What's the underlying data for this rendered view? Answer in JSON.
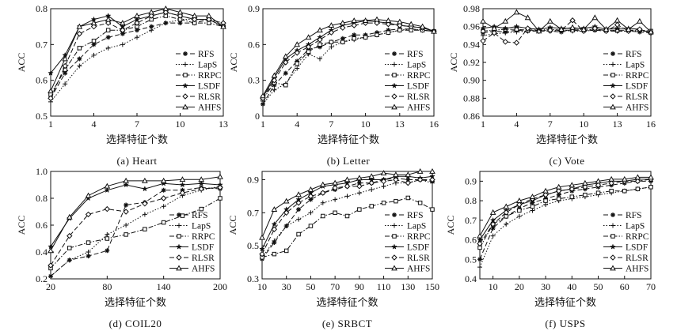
{
  "chart_data": [
    {
      "type": "line",
      "caption": "(a)   Heart",
      "xlabel": "选择特征个数",
      "ylabel": "ACC",
      "xlim": [
        1,
        13
      ],
      "ylim": [
        0.5,
        0.8
      ],
      "xticks": [
        "1",
        "4",
        "7",
        "10",
        "13"
      ],
      "yticks": [
        "0.5",
        "0.6",
        "0.7",
        "0.8"
      ],
      "legend_position": "right",
      "x": [
        1,
        2,
        3,
        4,
        5,
        6,
        7,
        8,
        9,
        10,
        11,
        12,
        13
      ],
      "series": [
        {
          "name": "RFS",
          "marker": "asterisk",
          "dash": "6,3",
          "values": [
            0.55,
            0.62,
            0.66,
            0.7,
            0.72,
            0.73,
            0.74,
            0.75,
            0.76,
            0.76,
            0.76,
            0.77,
            0.75
          ]
        },
        {
          "name": "LapS",
          "marker": "plus",
          "dash": "1.5,2",
          "values": [
            0.54,
            0.59,
            0.64,
            0.67,
            0.69,
            0.7,
            0.72,
            0.74,
            0.76,
            0.77,
            0.77,
            0.77,
            0.76
          ]
        },
        {
          "name": "RRPC",
          "marker": "square",
          "dash": "6,2,1.5,2",
          "values": [
            0.56,
            0.63,
            0.69,
            0.71,
            0.74,
            0.74,
            0.75,
            0.77,
            0.78,
            0.77,
            0.76,
            0.76,
            0.75
          ]
        },
        {
          "name": "LSDF",
          "marker": "star",
          "dash": "",
          "values": [
            0.62,
            0.67,
            0.75,
            0.77,
            0.78,
            0.75,
            0.77,
            0.78,
            0.79,
            0.78,
            0.77,
            0.77,
            0.75
          ]
        },
        {
          "name": "RLSR",
          "marker": "diamond",
          "dash": "6,3",
          "values": [
            0.55,
            0.64,
            0.73,
            0.75,
            0.76,
            0.74,
            0.76,
            0.78,
            0.79,
            0.78,
            0.77,
            0.77,
            0.76
          ]
        },
        {
          "name": "AHFS",
          "marker": "triangle",
          "dash": "",
          "values": [
            0.57,
            0.66,
            0.75,
            0.76,
            0.77,
            0.76,
            0.78,
            0.79,
            0.8,
            0.79,
            0.78,
            0.78,
            0.75
          ]
        }
      ]
    },
    {
      "type": "line",
      "caption": "(b)   Letter",
      "xlabel": "选择特征个数",
      "ylabel": "ACC",
      "xlim": [
        1,
        16
      ],
      "ylim": [
        0,
        0.9
      ],
      "xticks": [
        "1",
        "4",
        "7",
        "10",
        "13",
        "16"
      ],
      "xtick_values": [
        1,
        4,
        7,
        10,
        13,
        16
      ],
      "yticks": [
        "0",
        "0.3",
        "0.6",
        "0.9"
      ],
      "legend_position": "right",
      "x": [
        1,
        2,
        3,
        4,
        5,
        6,
        7,
        8,
        9,
        10,
        11,
        12,
        13,
        14,
        15,
        16
      ],
      "series": [
        {
          "name": "RFS",
          "marker": "asterisk",
          "dash": "6,3",
          "values": [
            0.1,
            0.26,
            0.36,
            0.46,
            0.56,
            0.58,
            0.62,
            0.65,
            0.68,
            0.68,
            0.7,
            0.72,
            0.73,
            0.73,
            0.72,
            0.71
          ]
        },
        {
          "name": "LapS",
          "marker": "plus",
          "dash": "1.5,2",
          "values": [
            0.1,
            0.22,
            0.27,
            0.4,
            0.52,
            0.48,
            0.58,
            0.62,
            0.64,
            0.66,
            0.68,
            0.7,
            0.72,
            0.73,
            0.72,
            0.71
          ]
        },
        {
          "name": "RRPC",
          "marker": "square",
          "dash": "6,2,1.5,2",
          "values": [
            0.14,
            0.28,
            0.26,
            0.44,
            0.54,
            0.6,
            0.62,
            0.62,
            0.65,
            0.66,
            0.68,
            0.7,
            0.72,
            0.72,
            0.72,
            0.71
          ]
        },
        {
          "name": "LSDF",
          "marker": "star",
          "dash": "",
          "values": [
            0.16,
            0.32,
            0.48,
            0.55,
            0.6,
            0.66,
            0.72,
            0.76,
            0.78,
            0.8,
            0.79,
            0.78,
            0.76,
            0.75,
            0.74,
            0.71
          ]
        },
        {
          "name": "RLSR",
          "marker": "diamond",
          "dash": "6,3",
          "values": [
            0.15,
            0.3,
            0.45,
            0.53,
            0.58,
            0.64,
            0.7,
            0.74,
            0.76,
            0.78,
            0.78,
            0.77,
            0.76,
            0.75,
            0.74,
            0.71
          ]
        },
        {
          "name": "AHFS",
          "marker": "triangle",
          "dash": "",
          "values": [
            0.17,
            0.34,
            0.5,
            0.6,
            0.66,
            0.72,
            0.76,
            0.78,
            0.8,
            0.8,
            0.81,
            0.8,
            0.79,
            0.77,
            0.75,
            0.71
          ]
        }
      ]
    },
    {
      "type": "line",
      "caption": "(c)   Vote",
      "xlabel": "选择特征个数",
      "ylabel": "ACC",
      "xlim": [
        1,
        16
      ],
      "ylim": [
        0.86,
        0.98
      ],
      "xticks": [
        "1",
        "4",
        "7",
        "10",
        "13",
        "16"
      ],
      "xtick_values": [
        1,
        4,
        7,
        10,
        13,
        16
      ],
      "yticks": [
        "0.86",
        "0.88",
        "0.90",
        "0.92",
        "0.94",
        "0.96",
        "0.98"
      ],
      "legend_position": "right",
      "x": [
        1,
        2,
        3,
        4,
        5,
        6,
        7,
        8,
        9,
        10,
        11,
        12,
        13,
        14,
        15,
        16
      ],
      "series": [
        {
          "name": "RFS",
          "marker": "asterisk",
          "dash": "6,3",
          "values": [
            0.953,
            0.955,
            0.954,
            0.956,
            0.955,
            0.955,
            0.955,
            0.954,
            0.956,
            0.955,
            0.956,
            0.955,
            0.955,
            0.955,
            0.954,
            0.953
          ]
        },
        {
          "name": "LapS",
          "marker": "plus",
          "dash": "1.5,2",
          "values": [
            0.95,
            0.952,
            0.953,
            0.954,
            0.955,
            0.956,
            0.955,
            0.956,
            0.955,
            0.955,
            0.956,
            0.956,
            0.955,
            0.955,
            0.955,
            0.954
          ]
        },
        {
          "name": "RRPC",
          "marker": "square",
          "dash": "6,2,1.5,2",
          "values": [
            0.955,
            0.956,
            0.957,
            0.957,
            0.956,
            0.956,
            0.957,
            0.956,
            0.956,
            0.957,
            0.957,
            0.956,
            0.956,
            0.956,
            0.956,
            0.955
          ]
        },
        {
          "name": "LSDF",
          "marker": "star",
          "dash": "",
          "values": [
            0.958,
            0.96,
            0.958,
            0.96,
            0.958,
            0.957,
            0.959,
            0.958,
            0.958,
            0.958,
            0.96,
            0.957,
            0.958,
            0.958,
            0.957,
            0.953
          ]
        },
        {
          "name": "RLSR",
          "marker": "diamond",
          "dash": "6,3",
          "values": [
            0.944,
            0.953,
            0.943,
            0.942,
            0.958,
            0.955,
            0.956,
            0.956,
            0.967,
            0.955,
            0.958,
            0.955,
            0.962,
            0.955,
            0.957,
            0.953
          ]
        },
        {
          "name": "AHFS",
          "marker": "triangle",
          "dash": "",
          "values": [
            0.966,
            0.958,
            0.966,
            0.976,
            0.97,
            0.955,
            0.966,
            0.957,
            0.959,
            0.957,
            0.97,
            0.957,
            0.967,
            0.957,
            0.966,
            0.954
          ]
        }
      ]
    },
    {
      "type": "line",
      "caption": "(d)   COIL20",
      "xlabel": "选择特征个数",
      "ylabel": "ACC",
      "xlim": [
        20,
        200
      ],
      "ylim": [
        0.2,
        1.0
      ],
      "xticks": [
        "20",
        "80",
        "140",
        "200"
      ],
      "xtick_values": [
        20,
        80,
        140,
        200
      ],
      "yticks": [
        "0.2",
        "0.4",
        "0.6",
        "0.8",
        "1.0"
      ],
      "legend_position": "right",
      "x": [
        20,
        40,
        60,
        80,
        100,
        120,
        140,
        160,
        180,
        200
      ],
      "series": [
        {
          "name": "RFS",
          "marker": "asterisk",
          "dash": "6,3",
          "values": [
            0.22,
            0.34,
            0.37,
            0.41,
            0.75,
            0.77,
            0.86,
            0.86,
            0.88,
            0.87
          ]
        },
        {
          "name": "LapS",
          "marker": "plus",
          "dash": "1.5,2",
          "values": [
            0.22,
            0.34,
            0.4,
            0.53,
            0.6,
            0.68,
            0.74,
            0.82,
            0.86,
            0.89
          ]
        },
        {
          "name": "RRPC",
          "marker": "square",
          "dash": "6,2,1.5,2",
          "values": [
            0.28,
            0.43,
            0.47,
            0.5,
            0.53,
            0.57,
            0.62,
            0.67,
            0.72,
            0.8
          ]
        },
        {
          "name": "LSDF",
          "marker": "star",
          "dash": "",
          "values": [
            0.44,
            0.65,
            0.8,
            0.86,
            0.9,
            0.87,
            0.91,
            0.9,
            0.91,
            0.9
          ]
        },
        {
          "name": "RLSR",
          "marker": "diamond",
          "dash": "6,3",
          "values": [
            0.3,
            0.52,
            0.68,
            0.72,
            0.7,
            0.76,
            0.8,
            0.84,
            0.87,
            0.88
          ]
        },
        {
          "name": "AHFS",
          "marker": "triangle",
          "dash": "",
          "values": [
            0.41,
            0.66,
            0.82,
            0.89,
            0.93,
            0.93,
            0.93,
            0.94,
            0.94,
            0.96
          ]
        }
      ]
    },
    {
      "type": "line",
      "caption": "(e)   SRBCT",
      "xlabel": "选择特征个数",
      "ylabel": "ACC",
      "xlim": [
        10,
        150
      ],
      "ylim": [
        0.3,
        0.95
      ],
      "xticks": [
        "10",
        "30",
        "50",
        "70",
        "90",
        "110",
        "130",
        "150"
      ],
      "xtick_values": [
        10,
        30,
        50,
        70,
        90,
        110,
        130,
        150
      ],
      "yticks": [
        "0.3",
        "0.5",
        "0.7",
        "0.9"
      ],
      "legend_position": "bottom-right",
      "x": [
        10,
        20,
        30,
        40,
        50,
        60,
        70,
        80,
        90,
        100,
        110,
        120,
        130,
        140,
        150
      ],
      "series": [
        {
          "name": "RFS",
          "marker": "asterisk",
          "dash": "6,3",
          "values": [
            0.42,
            0.52,
            0.62,
            0.72,
            0.78,
            0.82,
            0.84,
            0.86,
            0.88,
            0.88,
            0.9,
            0.91,
            0.9,
            0.9,
            0.89
          ]
        },
        {
          "name": "LapS",
          "marker": "plus",
          "dash": "1.5,2",
          "values": [
            0.43,
            0.53,
            0.62,
            0.66,
            0.7,
            0.76,
            0.78,
            0.8,
            0.82,
            0.84,
            0.86,
            0.88,
            0.88,
            0.9,
            0.88
          ]
        },
        {
          "name": "RRPC",
          "marker": "square",
          "dash": "6,2,1.5,2",
          "values": [
            0.43,
            0.45,
            0.47,
            0.57,
            0.62,
            0.68,
            0.7,
            0.68,
            0.72,
            0.74,
            0.76,
            0.77,
            0.79,
            0.76,
            0.72
          ]
        },
        {
          "name": "LSDF",
          "marker": "star",
          "dash": "",
          "values": [
            0.48,
            0.63,
            0.72,
            0.78,
            0.82,
            0.86,
            0.87,
            0.88,
            0.9,
            0.9,
            0.9,
            0.92,
            0.92,
            0.91,
            0.92
          ]
        },
        {
          "name": "RLSR",
          "marker": "diamond",
          "dash": "6,3",
          "values": [
            0.45,
            0.6,
            0.7,
            0.76,
            0.8,
            0.82,
            0.85,
            0.86,
            0.86,
            0.88,
            0.89,
            0.9,
            0.88,
            0.9,
            0.9
          ]
        },
        {
          "name": "AHFS",
          "marker": "triangle",
          "dash": "",
          "values": [
            0.55,
            0.72,
            0.77,
            0.81,
            0.84,
            0.87,
            0.88,
            0.9,
            0.91,
            0.92,
            0.94,
            0.93,
            0.93,
            0.95,
            0.95
          ]
        }
      ]
    },
    {
      "type": "line",
      "caption": "(f)   USPS",
      "xlabel": "选择特征个数",
      "ylabel": "ACC",
      "xlim": [
        5,
        70
      ],
      "ylim": [
        0.4,
        0.95
      ],
      "xticks": [
        "10",
        "20",
        "30",
        "40",
        "50",
        "60",
        "70"
      ],
      "xtick_values": [
        10,
        20,
        30,
        40,
        50,
        60,
        70
      ],
      "yticks": [
        "0.4",
        "0.5",
        "0.6",
        "0.7",
        "0.8",
        "0.9"
      ],
      "legend_position": "bottom-right",
      "x": [
        5,
        10,
        15,
        20,
        25,
        30,
        35,
        40,
        45,
        50,
        55,
        60,
        65,
        70
      ],
      "series": [
        {
          "name": "RFS",
          "marker": "asterisk",
          "dash": "6,3",
          "values": [
            0.5,
            0.66,
            0.72,
            0.76,
            0.79,
            0.81,
            0.83,
            0.85,
            0.86,
            0.87,
            0.88,
            0.89,
            0.9,
            0.9
          ]
        },
        {
          "name": "LapS",
          "marker": "plus",
          "dash": "1.5,2",
          "values": [
            0.46,
            0.62,
            0.68,
            0.72,
            0.75,
            0.78,
            0.8,
            0.81,
            0.82,
            0.83,
            0.84,
            0.85,
            0.86,
            0.87
          ]
        },
        {
          "name": "RRPC",
          "marker": "square",
          "dash": "6,2,1.5,2",
          "values": [
            0.56,
            0.68,
            0.72,
            0.75,
            0.77,
            0.8,
            0.81,
            0.82,
            0.83,
            0.84,
            0.85,
            0.85,
            0.86,
            0.87
          ]
        },
        {
          "name": "LSDF",
          "marker": "star",
          "dash": "",
          "values": [
            0.6,
            0.7,
            0.75,
            0.78,
            0.8,
            0.83,
            0.85,
            0.86,
            0.88,
            0.89,
            0.9,
            0.9,
            0.91,
            0.91
          ]
        },
        {
          "name": "RLSR",
          "marker": "diamond",
          "dash": "6,3",
          "values": [
            0.58,
            0.68,
            0.74,
            0.78,
            0.81,
            0.83,
            0.85,
            0.86,
            0.87,
            0.88,
            0.89,
            0.9,
            0.9,
            0.91
          ]
        },
        {
          "name": "AHFS",
          "marker": "triangle",
          "dash": "",
          "values": [
            0.62,
            0.74,
            0.77,
            0.8,
            0.82,
            0.85,
            0.87,
            0.88,
            0.89,
            0.9,
            0.91,
            0.91,
            0.92,
            0.92
          ]
        }
      ]
    }
  ]
}
